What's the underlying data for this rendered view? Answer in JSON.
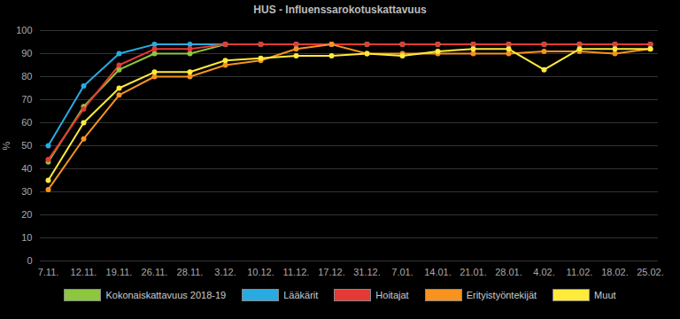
{
  "chart_data": {
    "type": "line",
    "title": "HUS - Influenssarokotuskattavuus",
    "y_label": "%",
    "categories": [
      "7.11.",
      "12.11.",
      "19.11.",
      "26.11.",
      "28.11.",
      "3.12.",
      "10.12.",
      "11.12.",
      "17.12.",
      "31.12.",
      "7.01.",
      "14.01.",
      "21.01.",
      "28.01.",
      "4.02.",
      "11.02.",
      "18.02.",
      "25.02."
    ],
    "series": [
      {
        "name": "Kokonaiskattavuus 2018-19",
        "color": "#8dc63f",
        "values": [
          43,
          67,
          83,
          90,
          90,
          94,
          94,
          94,
          94,
          94,
          94,
          94,
          94,
          94,
          94,
          94,
          94,
          94
        ]
      },
      {
        "name": "Lääkärit",
        "color": "#29abe2",
        "values": [
          50,
          76,
          90,
          94,
          94,
          94,
          94,
          94,
          94,
          94,
          94,
          94,
          94,
          94,
          94,
          94,
          94,
          94
        ]
      },
      {
        "name": "Hoitajat",
        "color": "#e53935",
        "values": [
          44,
          66,
          85,
          92,
          92,
          94,
          94,
          94,
          94,
          94,
          94,
          94,
          94,
          94,
          94,
          94,
          94,
          94
        ]
      },
      {
        "name": "Erityistyöntekijät",
        "color": "#f7931e",
        "values": [
          31,
          53,
          72,
          80,
          80,
          85,
          87,
          92,
          94,
          90,
          90,
          90,
          90,
          90,
          91,
          91,
          90,
          92
        ]
      },
      {
        "name": "Muut",
        "color": "#ffeb3b",
        "values": [
          35,
          60,
          75,
          82,
          82,
          87,
          88,
          89,
          89,
          90,
          89,
          91,
          92,
          92,
          83,
          92,
          92,
          92
        ]
      }
    ],
    "ylim": [
      0,
      100
    ],
    "yticks": [
      0,
      10,
      20,
      30,
      40,
      50,
      60,
      70,
      80,
      90,
      100
    ],
    "grid": true,
    "legend": "bottom",
    "marker": "circle"
  }
}
